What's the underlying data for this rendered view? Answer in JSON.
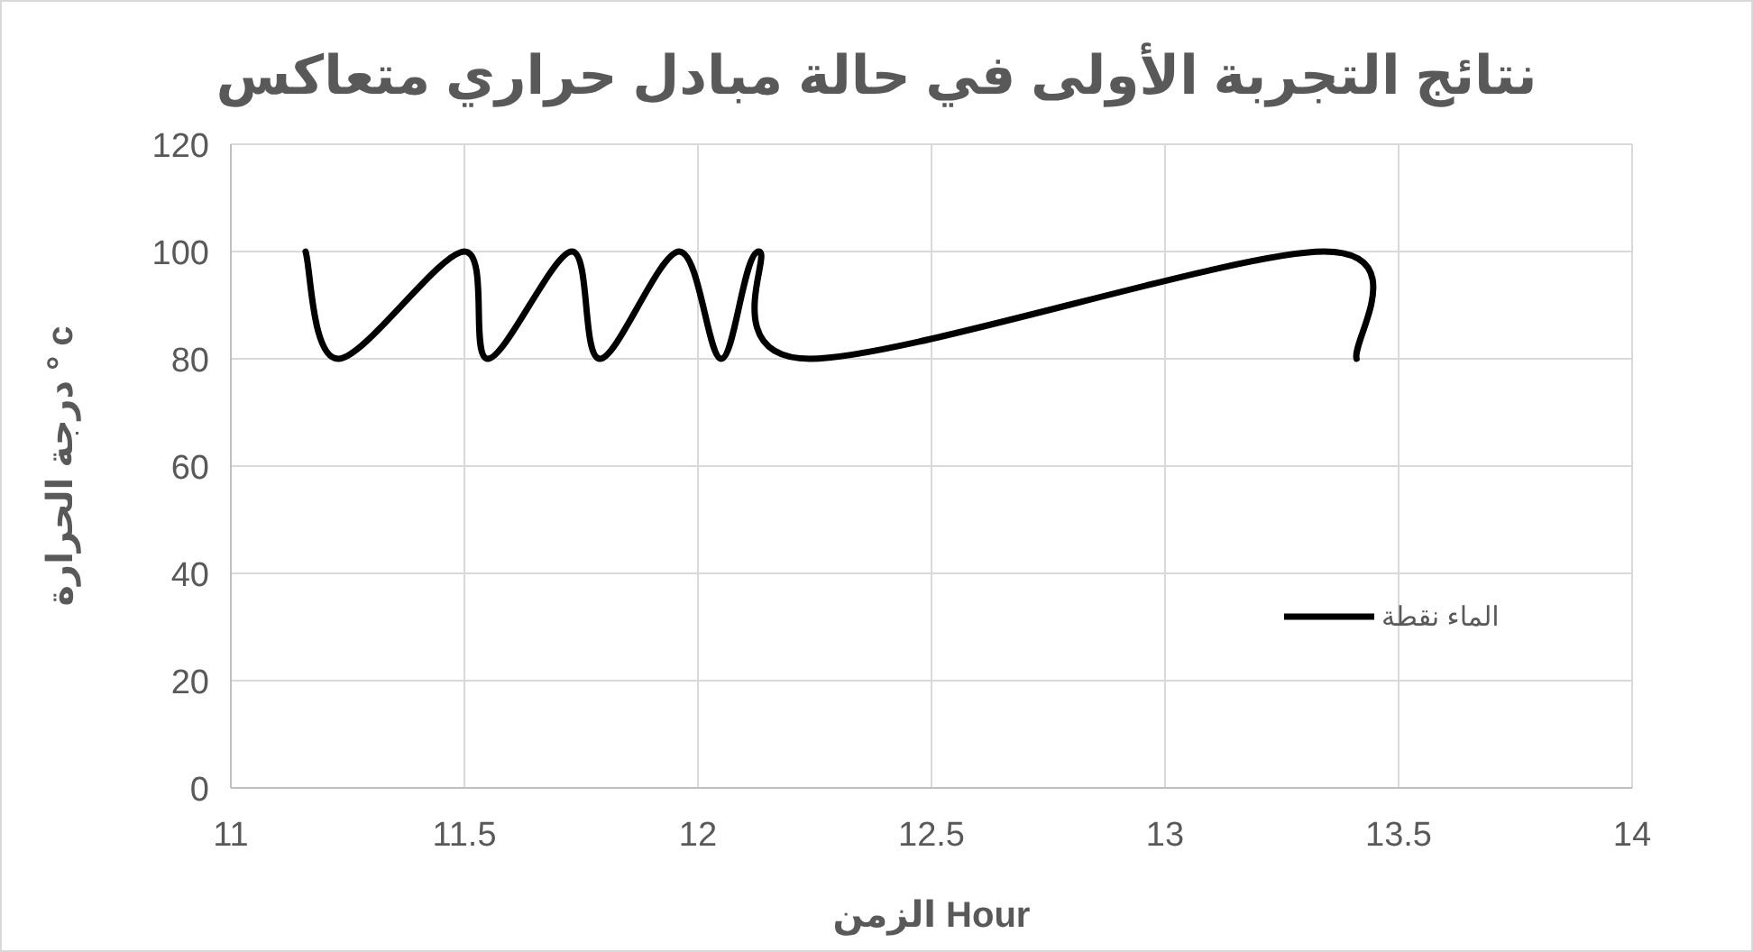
{
  "chart_data": {
    "type": "line",
    "title": "نتائج التجربة الأولى في حالة مبادل حراري متعاكس",
    "xlabel": "الزمن Hour",
    "ylabel": "درجة الحرارة ° c",
    "x": [
      11.16,
      11.23,
      11.5,
      11.55,
      11.73,
      11.79,
      11.96,
      12.05,
      12.13,
      12.24,
      13.34,
      13.41
    ],
    "series": [
      {
        "name": "الماء نقطة",
        "color": "#000000",
        "values": [
          100,
          80,
          100,
          80,
          100,
          80,
          100,
          80,
          100,
          80,
          100,
          80
        ]
      }
    ],
    "xlim": [
      11,
      14
    ],
    "xticks": [
      11,
      11.5,
      12,
      12.5,
      13,
      13.5,
      14
    ],
    "ylim": [
      0,
      120
    ],
    "yticks": [
      0,
      20,
      40,
      60,
      80,
      100,
      120
    ],
    "grid": true,
    "legend": "right",
    "marker": "none",
    "line_style": "solid"
  }
}
